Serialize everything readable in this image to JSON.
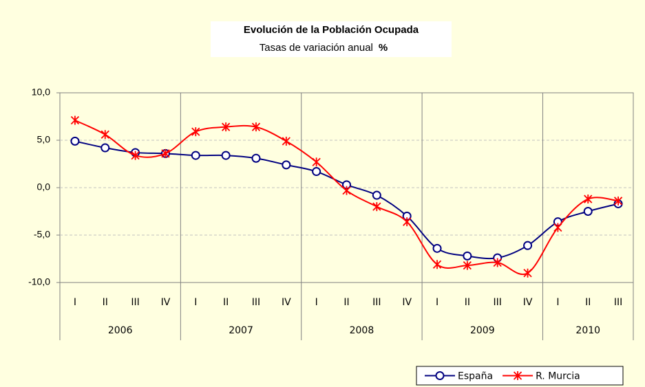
{
  "chart_data": {
    "type": "line",
    "title": "Evolución de la Población Ocupada",
    "subtitle": "Tasas de variación anual",
    "subtitle_unit": "%",
    "category_groups": [
      {
        "label": "2006",
        "categories": [
          "I",
          "II",
          "III",
          "IV"
        ]
      },
      {
        "label": "2007",
        "categories": [
          "I",
          "II",
          "III",
          "IV"
        ]
      },
      {
        "label": "2008",
        "categories": [
          "I",
          "II",
          "III",
          "IV"
        ]
      },
      {
        "label": "2009",
        "categories": [
          "I",
          "II",
          "III",
          "IV"
        ]
      },
      {
        "label": "2010",
        "categories": [
          "I",
          "II",
          "III"
        ]
      }
    ],
    "series": [
      {
        "name": "España",
        "color": "#000080",
        "marker": "circle",
        "values": [
          4.9,
          4.2,
          3.7,
          3.6,
          3.4,
          3.4,
          3.1,
          2.4,
          1.7,
          0.3,
          -0.8,
          -3.0,
          -6.4,
          -7.2,
          -7.4,
          -6.1,
          -3.6,
          -2.5,
          -1.7
        ]
      },
      {
        "name": "R. Murcia",
        "color": "#ff0000",
        "marker": "star",
        "values": [
          7.1,
          5.6,
          3.4,
          3.6,
          5.9,
          6.4,
          6.4,
          4.9,
          2.7,
          -0.3,
          -2.0,
          -3.6,
          -8.1,
          -8.2,
          -7.9,
          -9.0,
          -4.2,
          -1.2,
          -1.4
        ]
      }
    ],
    "ylim": [
      -10,
      10
    ],
    "yticks": [
      {
        "value": -10,
        "label": "-10,0"
      },
      {
        "value": -5,
        "label": "-5,0"
      },
      {
        "value": 0,
        "label": "0,0"
      },
      {
        "value": 5,
        "label": "5,0"
      },
      {
        "value": 10,
        "label": "10,0"
      }
    ],
    "grid": true,
    "legend": "lower right"
  }
}
